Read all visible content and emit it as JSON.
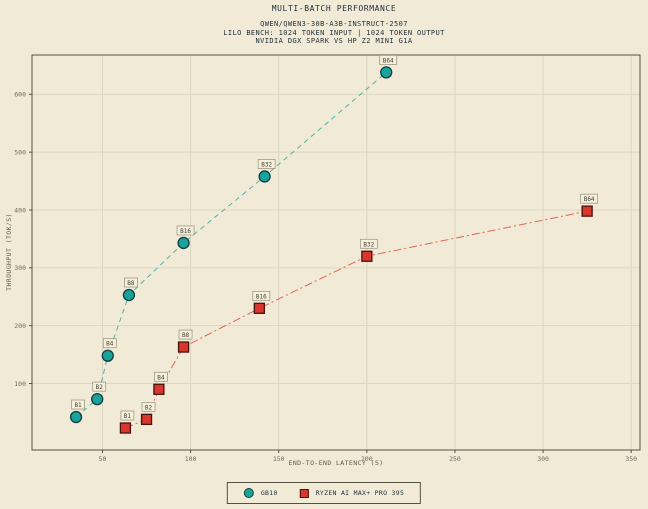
{
  "title": "MULTI-BATCH PERFORMANCE",
  "subtitle_lines": [
    "QWEN/QWEN3-30B-A3B-INSTRUCT-2507",
    "LILO BENCH: 1024 TOKEN INPUT | 1024 TOKEN OUTPUT",
    "NVIDIA DGX SPARK VS HP Z2 MINI G1A"
  ],
  "colors": {
    "background": "#f1ead7",
    "grid": "#dcd5c0",
    "axis": "#565044",
    "tick_text": "#6f6b5e",
    "gb10": "#18a39b",
    "gb10_stroke": "#123c40",
    "ryzen": "#d8372e",
    "ryzen_stroke": "#4c100c",
    "label_box_bg": "#f5efdc",
    "label_box_border": "#958e79",
    "label_text": "#403d33"
  },
  "chart_data": {
    "type": "scatter",
    "title": "MULTI-BATCH PERFORMANCE",
    "xlabel": "END-TO-END LATENCY (S)",
    "ylabel": "THROUGHPUT (TOK/S)",
    "xlim": [
      10,
      355
    ],
    "ylim": [
      -15,
      668
    ],
    "xticks": [
      50,
      100,
      150,
      200,
      250,
      300,
      350
    ],
    "yticks": [
      100,
      200,
      300,
      400,
      500,
      600
    ],
    "grid": true,
    "legend_position": "bottom-center",
    "series": [
      {
        "name": "GB10",
        "marker": "circle",
        "color": "#18a39b",
        "line_style": "dashed",
        "points": [
          {
            "label": "B1",
            "x": 35,
            "y": 42
          },
          {
            "label": "B2",
            "x": 47,
            "y": 73
          },
          {
            "label": "B4",
            "x": 53,
            "y": 148
          },
          {
            "label": "B8",
            "x": 65,
            "y": 253
          },
          {
            "label": "B16",
            "x": 96,
            "y": 343
          },
          {
            "label": "B32",
            "x": 142,
            "y": 458
          },
          {
            "label": "B64",
            "x": 211,
            "y": 638
          }
        ]
      },
      {
        "name": "RYZEN AI MAX+ PRO 395",
        "marker": "square",
        "color": "#d8372e",
        "line_style": "dashdot",
        "points": [
          {
            "label": "B1",
            "x": 63,
            "y": 23
          },
          {
            "label": "B2",
            "x": 75,
            "y": 38
          },
          {
            "label": "B4",
            "x": 82,
            "y": 90
          },
          {
            "label": "B8",
            "x": 96,
            "y": 163
          },
          {
            "label": "B16",
            "x": 139,
            "y": 230
          },
          {
            "label": "B32",
            "x": 200,
            "y": 320
          },
          {
            "label": "B64",
            "x": 325,
            "y": 398
          }
        ]
      }
    ]
  }
}
